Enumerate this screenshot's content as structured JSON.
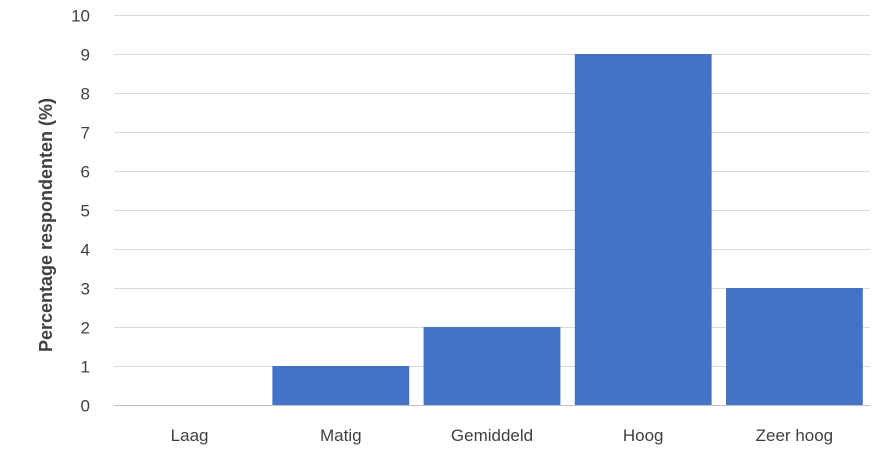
{
  "chart_data": {
    "type": "bar",
    "title": "",
    "xlabel": "",
    "ylabel": "Percentage respondenten (%)",
    "categories": [
      "Laag",
      "Matig",
      "Gemiddeld",
      "Hoog",
      "Zeer hoog"
    ],
    "series": [
      {
        "values": [
          0,
          1,
          2,
          9,
          3
        ]
      }
    ],
    "ylim": [
      0,
      10
    ],
    "yticks": [
      0,
      1,
      2,
      3,
      4,
      5,
      6,
      7,
      8,
      9,
      10
    ],
    "grid": true,
    "legend": "none",
    "colors": {
      "bar": "#4472c4",
      "grid": "#d9d9d9",
      "text": "#404040"
    }
  }
}
